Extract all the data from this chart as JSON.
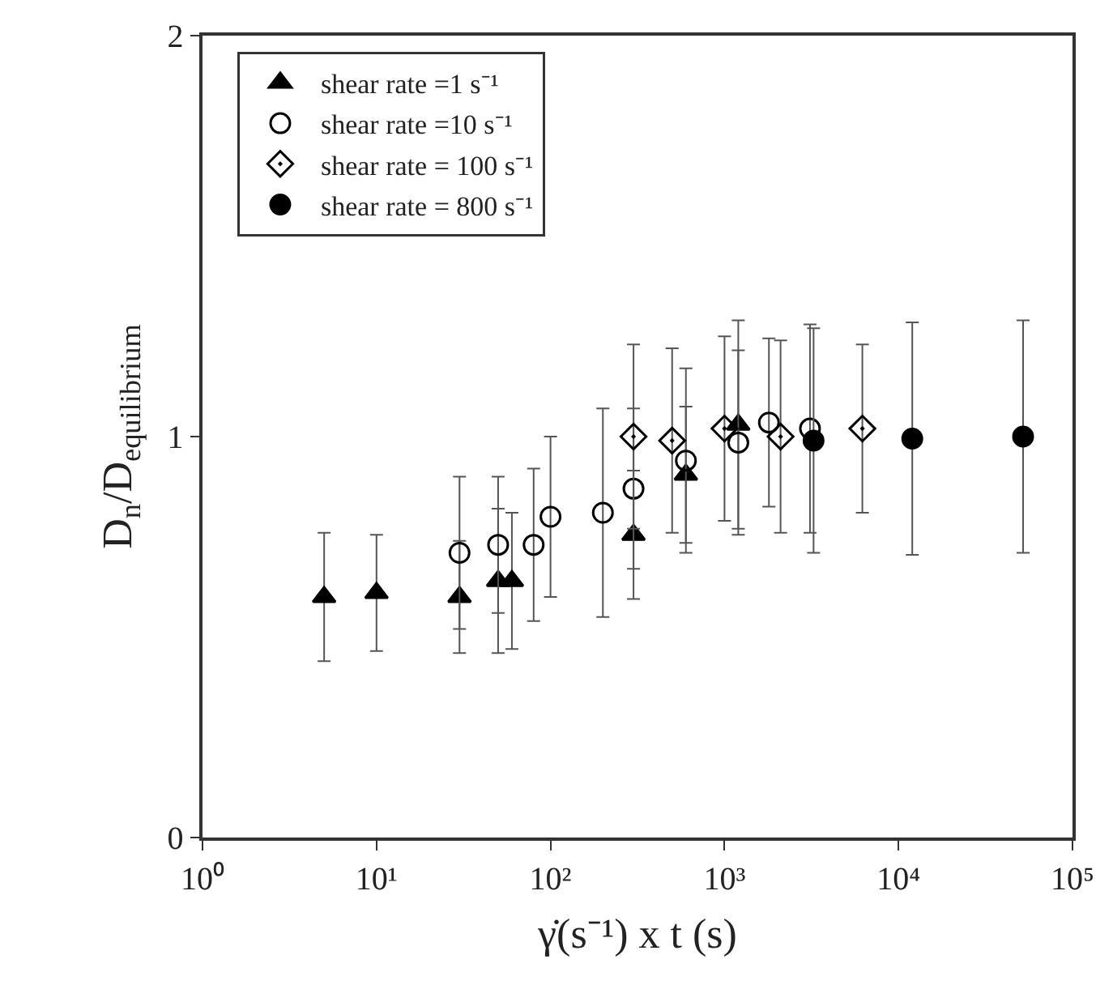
{
  "chart_data": {
    "type": "scatter",
    "xlabel": "γ̇(s⁻¹) x t (s)",
    "ylabel": "D$_{n}$/D$_{equilibrium}$",
    "log": "x",
    "xlim": [
      1,
      100000
    ],
    "xticks": [
      {
        "value": 1,
        "label": "10⁰"
      },
      {
        "value": 10,
        "label": "10¹"
      },
      {
        "value": 100,
        "label": "10²"
      },
      {
        "value": 1000,
        "label": "10³"
      },
      {
        "value": 10000,
        "label": "10⁴"
      },
      {
        "value": 100000,
        "label": "10⁵"
      }
    ],
    "ylim": [
      0,
      2
    ],
    "yticks": [
      0,
      1,
      2
    ],
    "grid": false,
    "legend": "top left",
    "series": [
      {
        "name": "shear rate =1 s⁻¹",
        "color": "#000000",
        "marker": "triangle",
        "x": [
          5,
          10,
          30,
          50,
          60,
          300,
          600,
          1200
        ],
        "values": [
          0.6,
          0.61,
          0.6,
          0.64,
          0.64,
          0.755,
          0.905,
          1.03
        ],
        "errors": [
          0.16,
          0.145,
          0.14,
          0.18,
          0.17,
          0.16,
          0.17,
          0.26
        ]
      },
      {
        "name": "shear rate =10 s⁻¹",
        "color": "#000000",
        "marker": "circle-open",
        "x": [
          30,
          50,
          80,
          100,
          200,
          300,
          600,
          1200,
          1800,
          3100
        ],
        "values": [
          0.71,
          0.73,
          0.73,
          0.8,
          0.81,
          0.87,
          0.94,
          0.985,
          1.035,
          1.02
        ],
        "errors": [
          0.19,
          0.17,
          0.19,
          0.2,
          0.26,
          0.2,
          0.23,
          0.23,
          0.21,
          0.26
        ]
      },
      {
        "name": "shear rate = 100 s⁻¹",
        "color": "#000000",
        "marker": "diamond-open-dot",
        "x": [
          300,
          500,
          1000,
          2100,
          6200
        ],
        "values": [
          1.0,
          0.99,
          1.02,
          1.0,
          1.02
        ],
        "errors": [
          0.23,
          0.23,
          0.23,
          0.24,
          0.21
        ]
      },
      {
        "name": "shear rate = 800 s⁻¹",
        "color": "#000000",
        "marker": "circle",
        "x": [
          3250,
          12000,
          52000
        ],
        "values": [
          0.99,
          0.995,
          1.0
        ],
        "errors": [
          0.28,
          0.29,
          0.29
        ]
      }
    ]
  }
}
